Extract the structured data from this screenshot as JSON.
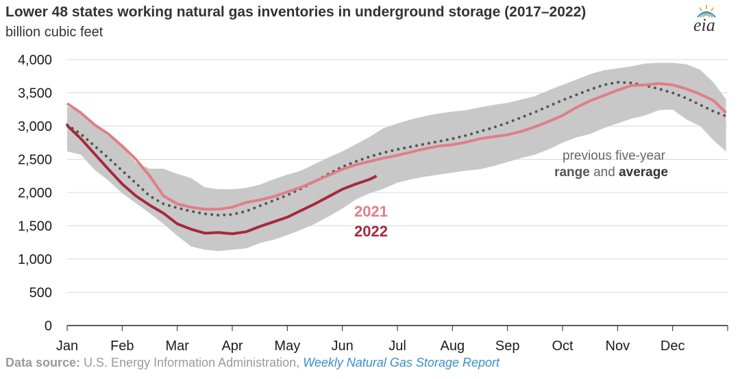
{
  "title": "Lower 48 states working natural gas inventories in underground storage (2017–2022)",
  "subtitle": "billion cubic feet",
  "logo": {
    "text": "eia",
    "icon": "eia-sun-icon"
  },
  "source": {
    "label": "Data source:",
    "text": " U.S. Energy Information Administration, ",
    "link": "Weekly Natural Gas Storage Report"
  },
  "colors": {
    "y2021": "#e07e86",
    "y2022": "#a52a3c",
    "range": "#c8c8c8",
    "average": "#555555"
  },
  "chart_data": {
    "type": "line",
    "ylim": [
      0,
      4000
    ],
    "yticks": [
      0,
      500,
      1000,
      1500,
      2000,
      2500,
      3000,
      3500,
      4000
    ],
    "ytick_labels": [
      "0",
      "500",
      "1,000",
      "1,500",
      "2,000",
      "2,500",
      "3,000",
      "3,500",
      "4,000"
    ],
    "xtick_labels": [
      "Jan",
      "Feb",
      "Mar",
      "Apr",
      "May",
      "Jun",
      "Jul",
      "Aug",
      "Sep",
      "Oct",
      "Nov",
      "Dec"
    ],
    "grid": "horizontal",
    "annotation": {
      "line1": "previous five-year",
      "range_word": "range",
      "and_word": " and ",
      "average_word": "average"
    },
    "range_band": {
      "x": [
        0,
        0.25,
        0.5,
        0.75,
        1,
        1.25,
        1.5,
        1.75,
        2,
        2.25,
        2.5,
        2.75,
        3,
        3.25,
        3.5,
        3.75,
        4,
        4.25,
        4.5,
        4.75,
        5,
        5.25,
        5.5,
        5.75,
        6,
        6.25,
        6.5,
        6.75,
        7,
        7.25,
        7.5,
        7.75,
        8,
        8.25,
        8.5,
        8.75,
        9,
        9.25,
        9.5,
        9.75,
        10,
        10.25,
        10.5,
        10.75,
        11,
        11.25,
        11.5,
        11.75,
        11.97
      ],
      "high": [
        3300,
        3200,
        3000,
        2850,
        2680,
        2450,
        2360,
        2360,
        2280,
        2220,
        2080,
        2050,
        2050,
        2070,
        2120,
        2200,
        2270,
        2330,
        2430,
        2530,
        2620,
        2730,
        2840,
        2970,
        3040,
        3100,
        3150,
        3190,
        3220,
        3240,
        3280,
        3320,
        3350,
        3400,
        3450,
        3540,
        3620,
        3700,
        3780,
        3840,
        3870,
        3900,
        3940,
        3950,
        3950,
        3930,
        3850,
        3650,
        3400
      ],
      "low": [
        2620,
        2570,
        2340,
        2180,
        1990,
        1840,
        1690,
        1530,
        1350,
        1190,
        1140,
        1120,
        1140,
        1160,
        1240,
        1290,
        1360,
        1440,
        1530,
        1640,
        1760,
        1900,
        1990,
        2060,
        2150,
        2200,
        2240,
        2270,
        2300,
        2330,
        2350,
        2400,
        2460,
        2520,
        2570,
        2650,
        2750,
        2830,
        2880,
        2970,
        3040,
        3110,
        3160,
        3240,
        3250,
        3100,
        3000,
        2780,
        2620
      ]
    },
    "series": [
      {
        "name": "2021",
        "x": [
          0,
          0.25,
          0.5,
          0.75,
          1,
          1.25,
          1.5,
          1.75,
          2,
          2.25,
          2.5,
          2.75,
          3,
          3.25,
          3.5,
          3.75,
          4,
          4.25,
          4.5,
          4.75,
          5,
          5.25,
          5.5,
          5.75,
          6,
          6.25,
          6.5,
          6.75,
          7,
          7.25,
          7.5,
          7.75,
          8,
          8.25,
          8.5,
          8.75,
          9,
          9.25,
          9.5,
          9.75,
          10,
          10.25,
          10.5,
          10.75,
          11,
          11.25,
          11.5,
          11.75,
          11.97
        ],
        "values": [
          3340,
          3200,
          3020,
          2880,
          2700,
          2500,
          2250,
          1950,
          1830,
          1780,
          1750,
          1750,
          1780,
          1850,
          1890,
          1940,
          2010,
          2080,
          2170,
          2260,
          2350,
          2420,
          2470,
          2520,
          2560,
          2610,
          2660,
          2700,
          2720,
          2760,
          2810,
          2840,
          2870,
          2920,
          2990,
          3070,
          3160,
          3280,
          3380,
          3460,
          3540,
          3610,
          3620,
          3640,
          3620,
          3560,
          3480,
          3380,
          3200
        ]
      },
      {
        "name": "2022",
        "x": [
          0,
          0.25,
          0.5,
          0.75,
          1,
          1.25,
          1.5,
          1.75,
          2,
          2.25,
          2.5,
          2.75,
          3,
          3.25,
          3.5,
          3.75,
          4,
          4.25,
          4.5,
          4.75,
          5,
          5.25,
          5.5,
          5.62
        ],
        "values": [
          3010,
          2810,
          2580,
          2350,
          2130,
          1950,
          1810,
          1690,
          1530,
          1450,
          1390,
          1400,
          1380,
          1410,
          1490,
          1560,
          1630,
          1730,
          1830,
          1940,
          2050,
          2130,
          2200,
          2250
        ]
      },
      {
        "name": "average",
        "x": [
          0,
          0.25,
          0.5,
          0.75,
          1,
          1.25,
          1.5,
          1.75,
          2,
          2.25,
          2.5,
          2.75,
          3,
          3.25,
          3.5,
          3.75,
          4,
          4.25,
          4.5,
          4.75,
          5,
          5.25,
          5.5,
          5.75,
          6,
          6.25,
          6.5,
          6.75,
          7,
          7.25,
          7.5,
          7.75,
          8,
          8.25,
          8.5,
          8.75,
          9,
          9.25,
          9.5,
          9.75,
          10,
          10.25,
          10.5,
          10.75,
          11,
          11.25,
          11.5,
          11.75,
          11.97
        ],
        "values": [
          3020,
          2880,
          2700,
          2520,
          2330,
          2140,
          1950,
          1830,
          1770,
          1720,
          1680,
          1660,
          1670,
          1720,
          1800,
          1880,
          1960,
          2060,
          2170,
          2280,
          2390,
          2470,
          2540,
          2600,
          2650,
          2690,
          2730,
          2770,
          2810,
          2860,
          2920,
          2980,
          3050,
          3130,
          3210,
          3300,
          3390,
          3470,
          3550,
          3620,
          3660,
          3650,
          3610,
          3560,
          3500,
          3420,
          3320,
          3220,
          3150
        ]
      }
    ]
  }
}
